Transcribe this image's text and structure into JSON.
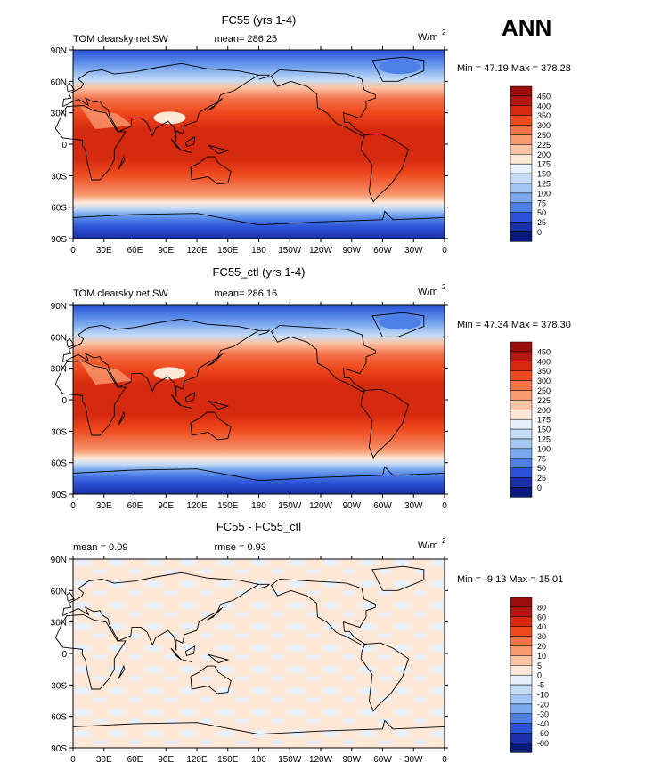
{
  "season": "ANN",
  "panels": [
    {
      "title": "FC55 (yrs 1-4)",
      "variable": "TOM clearsky net SW",
      "stat_text": "mean= 286.25",
      "units": "W/m",
      "units_exp": "2",
      "minmax": "Min =  47.19 Max = 378.28",
      "levels": [
        "450",
        "400",
        "350",
        "300",
        "250",
        "225",
        "200",
        "175",
        "150",
        "125",
        "100",
        "75",
        "50",
        "25",
        "0"
      ],
      "colors": [
        "#9b0d0d",
        "#b2180f",
        "#d62a10",
        "#ef4a1e",
        "#f2724a",
        "#f8996f",
        "#fbc4a5",
        "#fde8d8",
        "#e8f1fb",
        "#c5dcf6",
        "#a3c7f2",
        "#7ba9ee",
        "#4e7fe6",
        "#2b52d6",
        "#1a2fa8",
        "#0a1a78"
      ]
    },
    {
      "title": "FC55_ctl (yrs 1-4)",
      "variable": "TOM clearsky net SW",
      "stat_text": "mean= 286.16",
      "units": "W/m",
      "units_exp": "2",
      "minmax": "Min =  47.34 Max = 378.30",
      "levels": [
        "450",
        "400",
        "350",
        "300",
        "250",
        "225",
        "200",
        "175",
        "150",
        "125",
        "100",
        "75",
        "50",
        "25",
        "0"
      ],
      "colors": [
        "#9b0d0d",
        "#b2180f",
        "#d62a10",
        "#ef4a1e",
        "#f2724a",
        "#f8996f",
        "#fbc4a5",
        "#fde8d8",
        "#e8f1fb",
        "#c5dcf6",
        "#a3c7f2",
        "#7ba9ee",
        "#4e7fe6",
        "#2b52d6",
        "#1a2fa8",
        "#0a1a78"
      ]
    },
    {
      "title": "FC55 - FC55_ctl",
      "stat_left": "mean =    0.09",
      "stat_mid": "rmse =    0.93",
      "units": "W/m",
      "units_exp": "2",
      "minmax": "Min =  -9.13 Max =  15.01",
      "levels": [
        "80",
        "60",
        "40",
        "30",
        "20",
        "10",
        "5",
        "0",
        "-5",
        "-10",
        "-20",
        "-30",
        "-40",
        "-60",
        "-80"
      ],
      "colors": [
        "#9b0d0d",
        "#b2180f",
        "#d62a10",
        "#ef4a1e",
        "#f2724a",
        "#f8996f",
        "#fbc4a5",
        "#fde8d8",
        "#e8f1fb",
        "#c5dcf6",
        "#a3c7f2",
        "#7ba9ee",
        "#4e7fe6",
        "#2b52d6",
        "#1a2fa8",
        "#0a1a78"
      ]
    }
  ],
  "lat_ticks": [
    "90N",
    "60N",
    "30N",
    "0",
    "30S",
    "60S",
    "90S"
  ],
  "lon_ticks": [
    "0",
    "30E",
    "60E",
    "90E",
    "120E",
    "150E",
    "180",
    "150W",
    "120W",
    "90W",
    "60W",
    "30W",
    "0"
  ]
}
